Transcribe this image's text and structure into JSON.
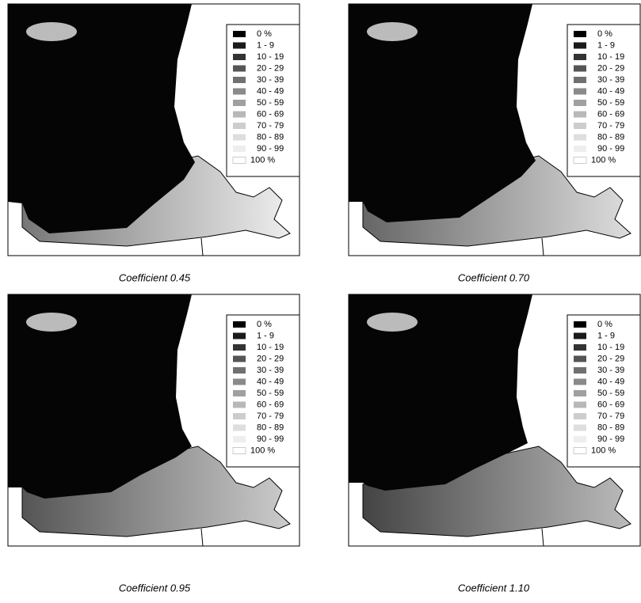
{
  "legend": [
    "0 %",
    "1 - 9",
    "10 - 19",
    "20 - 29",
    "30 - 39",
    "40 - 49",
    "50 - 59",
    "60 - 69",
    "70 - 79",
    "80 - 89",
    "90 - 99",
    "100 %"
  ],
  "panels": [
    {
      "caption": "Coefficient 0.45"
    },
    {
      "caption": "Coefficient 0.70"
    },
    {
      "caption": "Coefficient 0.95"
    },
    {
      "caption": "Coefficient 1.10"
    }
  ]
}
